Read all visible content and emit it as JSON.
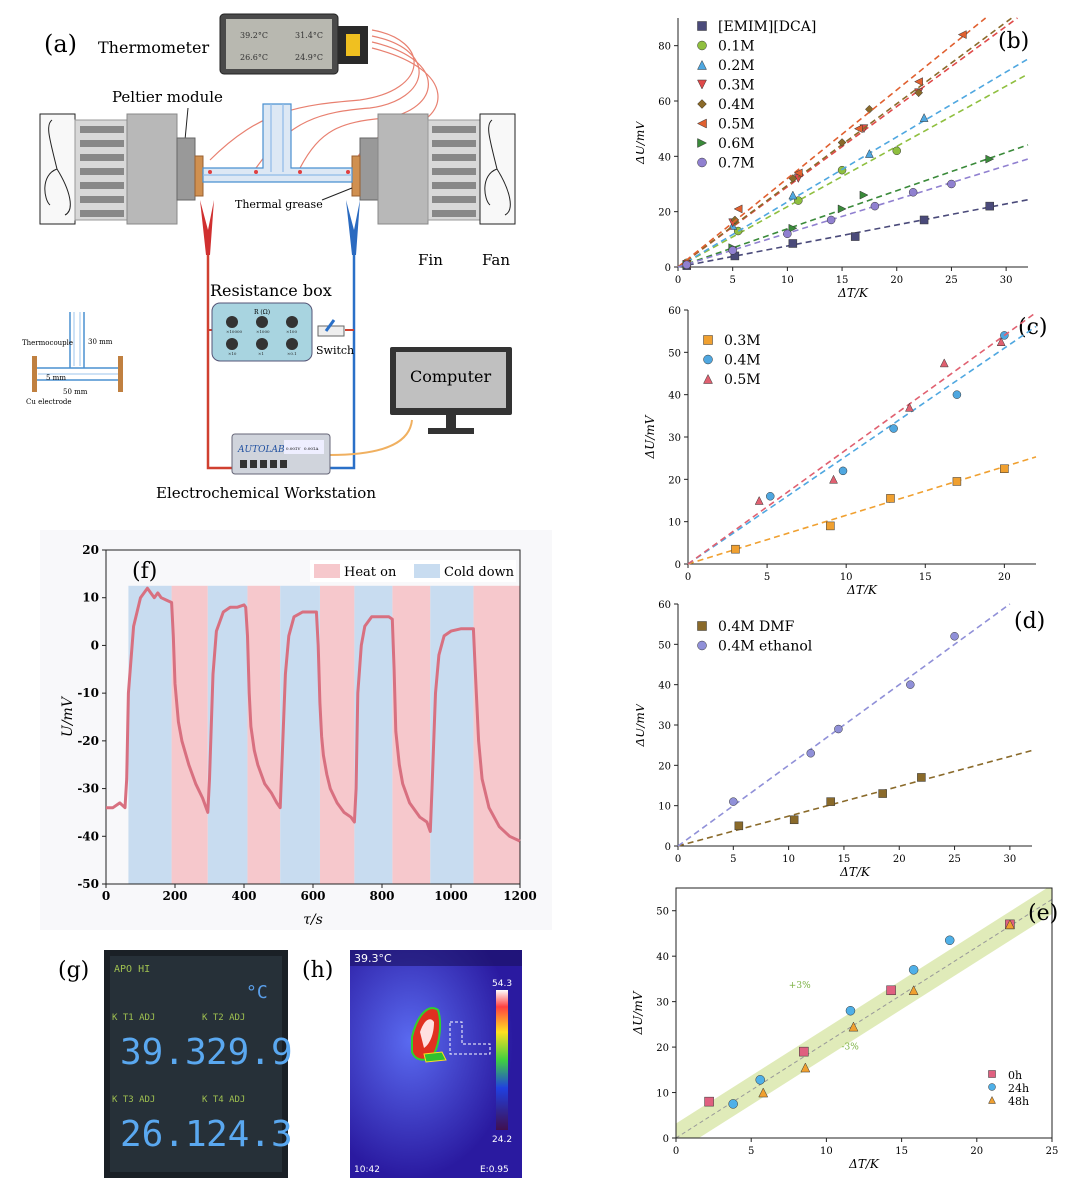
{
  "panel_a": {
    "label": "(a)",
    "thermometer": {
      "title": "Thermometer",
      "readings": [
        "39.2°C",
        "31.4°C",
        "26.6°C",
        "24.9°C"
      ]
    },
    "peltier": "Peltier module",
    "thermal_grease": "Thermal grease",
    "fin": "Fin",
    "fan": "Fan",
    "resistance_box": "Resistance box",
    "resistance_header": "R (Ω)",
    "resistance_knobs": [
      "×10000",
      "×1000",
      "×100",
      "×10",
      "×1",
      "×0.1"
    ],
    "switch": "Switch",
    "computer": "Computer",
    "autolab": "AUTOLAB",
    "autolab_readouts": [
      "0.001V",
      "0.001A"
    ],
    "workstation": "Electrochemical Workstation",
    "inset": {
      "thermocouple": "Thermocouple",
      "dim_30": "30 mm",
      "dim_5": "5 mm",
      "dim_50": "50 mm",
      "electrode": "Cu electrode"
    }
  },
  "panel_g": {
    "label": "(g)",
    "header": "APO HI",
    "unit": "°C",
    "channels": [
      {
        "tag": "K  T1  ADJ",
        "value": "39.3"
      },
      {
        "tag": "K  T2  ADJ",
        "value": "29.9"
      },
      {
        "tag": "K  T3  ADJ",
        "value": "26.1"
      },
      {
        "tag": "K  T4  ADJ",
        "value": "24.3"
      }
    ]
  },
  "panel_h": {
    "label": "(h)",
    "max_temp": "39.3°C",
    "scale_top": "54.3",
    "scale_bottom": "24.2",
    "time": "10:42",
    "emissivity": "E:0.95"
  },
  "chart_data": [
    {
      "id": "b",
      "panel_label": "(b)",
      "type": "scatter",
      "xlabel": "ΔT/K",
      "ylabel": "ΔU/mV",
      "xlim": [
        0,
        32
      ],
      "ylim": [
        0,
        90
      ],
      "xticks": [
        0,
        5,
        10,
        15,
        20,
        25,
        30
      ],
      "yticks": [
        0,
        20,
        40,
        60,
        80
      ],
      "legend": "top-left",
      "fit_lines": "dashed",
      "series": [
        {
          "name": "[EMIM][DCA]",
          "color": "#4a4a7a",
          "marker": "square",
          "slope": 0.76,
          "x": [
            0.8,
            5.2,
            10.5,
            16.2,
            22.5,
            28.5
          ],
          "y": [
            0.5,
            4,
            8.5,
            11,
            17,
            22
          ]
        },
        {
          "name": "0.1M",
          "color": "#8fbf3f",
          "marker": "circle",
          "slope": 2.18,
          "x": [
            0.8,
            5.5,
            11,
            15,
            20
          ],
          "y": [
            1.5,
            13,
            24,
            35,
            42
          ]
        },
        {
          "name": "0.2M",
          "color": "#4fa7e0",
          "marker": "triangle-up",
          "slope": 2.35,
          "x": [
            0.8,
            5,
            10.5,
            17.5,
            22.5
          ],
          "y": [
            1,
            15,
            26,
            41,
            54
          ]
        },
        {
          "name": "0.3M",
          "color": "#e04a4a",
          "marker": "triangle-down",
          "slope": 2.9,
          "x": [
            0.8,
            5,
            11,
            17,
            22
          ],
          "y": [
            1,
            16,
            32,
            50,
            63
          ]
        },
        {
          "name": "0.4M",
          "color": "#8a6a2a",
          "marker": "diamond",
          "slope": 2.95,
          "x": [
            0.8,
            5.2,
            10.5,
            15,
            17.5,
            22
          ],
          "y": [
            1,
            17,
            32,
            45,
            57,
            63
          ]
        },
        {
          "name": "0.5M",
          "color": "#e06030",
          "marker": "triangle-left",
          "slope": 3.2,
          "x": [
            0.8,
            5.5,
            11,
            16.5,
            22,
            26
          ],
          "y": [
            1,
            21,
            34,
            50,
            67,
            84
          ]
        },
        {
          "name": "0.6M",
          "color": "#3a8a3a",
          "marker": "triangle-right",
          "slope": 1.38,
          "x": [
            0.8,
            5,
            10.5,
            15,
            17,
            28.5
          ],
          "y": [
            0.8,
            7,
            14,
            21,
            26,
            39
          ]
        },
        {
          "name": "0.7M",
          "color": "#9080d0",
          "marker": "circle-half",
          "slope": 1.22,
          "x": [
            0.8,
            5,
            10,
            14,
            18,
            21.5,
            25
          ],
          "y": [
            0.8,
            6,
            12,
            17,
            22,
            27,
            30
          ]
        }
      ]
    },
    {
      "id": "c",
      "panel_label": "(c)",
      "type": "scatter",
      "xlabel": "ΔT/K",
      "ylabel": "ΔU/mV",
      "xlim": [
        0,
        22
      ],
      "ylim": [
        0,
        60
      ],
      "xticks": [
        0,
        5,
        10,
        15,
        20
      ],
      "yticks": [
        0,
        10,
        20,
        30,
        40,
        50,
        60
      ],
      "legend": "top-left",
      "fit_lines": "dashed",
      "series": [
        {
          "name": "0.3M",
          "color": "#f0a030",
          "marker": "square",
          "slope": 1.15,
          "x": [
            3,
            9,
            12.8,
            17,
            20
          ],
          "y": [
            3.5,
            9,
            15.5,
            19.5,
            22.5
          ]
        },
        {
          "name": "0.4M",
          "color": "#4fa7e0",
          "marker": "circle",
          "slope": 2.55,
          "x": [
            5.2,
            9.8,
            13,
            17,
            20
          ],
          "y": [
            16,
            22,
            32,
            40,
            54
          ]
        },
        {
          "name": "0.5M",
          "color": "#e06070",
          "marker": "triangle-up",
          "slope": 2.7,
          "x": [
            4.5,
            9.2,
            14,
            16.2,
            19.8
          ],
          "y": [
            15,
            20,
            37,
            47.5,
            52.5
          ]
        }
      ]
    },
    {
      "id": "d",
      "panel_label": "(d)",
      "type": "scatter",
      "xlabel": "ΔT/K",
      "ylabel": "ΔU/mV",
      "xlim": [
        0,
        32
      ],
      "ylim": [
        0,
        60
      ],
      "xticks": [
        0,
        5,
        10,
        15,
        20,
        25,
        30
      ],
      "yticks": [
        0,
        10,
        20,
        30,
        40,
        50,
        60
      ],
      "legend": "top-left",
      "fit_lines": "dashed",
      "series": [
        {
          "name": "0.4M DMF",
          "color": "#8a6a2a",
          "marker": "square",
          "slope": 0.74,
          "x": [
            5.5,
            10.5,
            13.8,
            18.5,
            22
          ],
          "y": [
            5,
            6.5,
            11,
            13,
            17
          ]
        },
        {
          "name": "0.4M ethanol",
          "color": "#9090d8",
          "marker": "circle",
          "slope": 2.0,
          "x": [
            5,
            12,
            14.5,
            21,
            25
          ],
          "y": [
            11,
            23,
            29,
            40,
            52
          ]
        }
      ]
    },
    {
      "id": "e",
      "panel_label": "(e)",
      "type": "scatter",
      "xlabel": "ΔT/K",
      "ylabel": "ΔU/mV",
      "xlim": [
        0,
        25
      ],
      "ylim": [
        0,
        55
      ],
      "xticks": [
        0,
        5,
        10,
        15,
        20,
        25
      ],
      "yticks": [
        0,
        10,
        20,
        30,
        40,
        50
      ],
      "legend": "bottom-right",
      "band": {
        "slope": 2.1,
        "upper_label": "+3%",
        "lower_label": "-3%",
        "color": "#d8e6a8"
      },
      "series": [
        {
          "name": "0h",
          "color": "#e06080",
          "marker": "square",
          "x": [
            2.2,
            8.5,
            14.3,
            22.2
          ],
          "y": [
            8,
            19,
            32.5,
            47
          ]
        },
        {
          "name": "24h",
          "color": "#4fb0e8",
          "marker": "circle",
          "x": [
            3.8,
            5.6,
            11.6,
            15.8,
            18.2
          ],
          "y": [
            7.5,
            12.8,
            28,
            37,
            43.5
          ]
        },
        {
          "name": "48h",
          "color": "#f0a030",
          "marker": "triangle-up",
          "x": [
            5.8,
            8.6,
            11.8,
            15.8,
            22.2
          ],
          "y": [
            10,
            15.5,
            24.5,
            32.5,
            47
          ]
        }
      ]
    },
    {
      "id": "f",
      "panel_label": "(f)",
      "type": "line",
      "xlabel": "τ/s",
      "ylabel": "U/mV",
      "xlim": [
        0,
        1200
      ],
      "ylim": [
        -50,
        20
      ],
      "xticks": [
        0,
        200,
        400,
        600,
        800,
        1000,
        1200
      ],
      "yticks": [
        -50,
        -40,
        -30,
        -20,
        -10,
        0,
        10,
        20
      ],
      "legend": "top-right",
      "legend_entries": [
        {
          "name": "Heat on",
          "color": "#f6c8cc"
        },
        {
          "name": "Cold down",
          "color": "#c8dcf0"
        }
      ],
      "cold_intervals": [
        [
          65,
          190
        ],
        [
          295,
          410
        ],
        [
          505,
          620
        ],
        [
          720,
          830
        ],
        [
          940,
          1065
        ]
      ],
      "heat_intervals": [
        [
          190,
          295
        ],
        [
          410,
          505
        ],
        [
          620,
          720
        ],
        [
          830,
          940
        ],
        [
          1065,
          1200
        ]
      ],
      "series": [
        {
          "name": "",
          "color": "#d87080",
          "x": [
            0,
            20,
            40,
            55,
            60,
            65,
            80,
            100,
            120,
            140,
            150,
            160,
            175,
            190,
            195,
            200,
            210,
            220,
            240,
            260,
            280,
            290,
            295,
            300,
            310,
            320,
            340,
            360,
            380,
            400,
            405,
            410,
            415,
            420,
            430,
            440,
            460,
            480,
            495,
            505,
            510,
            520,
            530,
            545,
            570,
            590,
            610,
            615,
            620,
            625,
            630,
            640,
            650,
            670,
            690,
            710,
            720,
            725,
            730,
            740,
            750,
            770,
            800,
            820,
            830,
            835,
            840,
            850,
            860,
            880,
            910,
            930,
            940,
            945,
            955,
            965,
            980,
            1000,
            1030,
            1055,
            1065,
            1070,
            1080,
            1090,
            1110,
            1140,
            1170,
            1200
          ],
          "y": [
            -34,
            -34,
            -33,
            -34,
            -28,
            -10,
            4,
            10,
            12,
            10,
            11,
            10,
            9.5,
            9,
            2,
            -8,
            -16,
            -20,
            -25,
            -29,
            -32,
            -34,
            -35,
            -28,
            -6,
            3,
            7,
            8,
            8,
            8.5,
            8,
            2,
            -10,
            -17,
            -22,
            -25,
            -29,
            -31,
            -33,
            -34,
            -25,
            -6,
            2,
            6,
            7,
            7,
            7,
            0,
            -12,
            -19,
            -23,
            -27,
            -30,
            -33,
            -35,
            -36,
            -37,
            -30,
            -10,
            0,
            4,
            6,
            6,
            6,
            5.5,
            -5,
            -18,
            -25,
            -29,
            -33,
            -36,
            -37,
            -39,
            -30,
            -10,
            -2,
            2,
            3,
            3.5,
            3.5,
            3.5,
            -5,
            -20,
            -28,
            -34,
            -38,
            -40,
            -41
          ]
        }
      ]
    }
  ]
}
